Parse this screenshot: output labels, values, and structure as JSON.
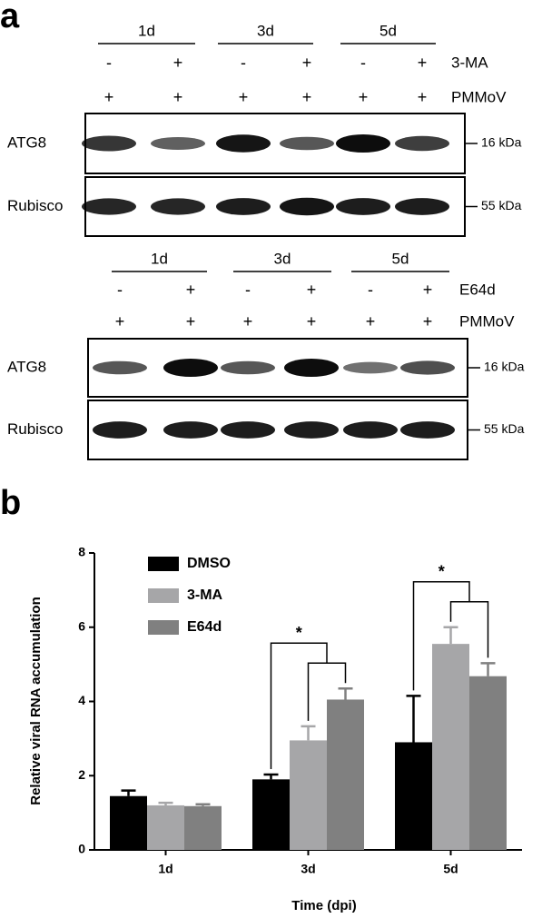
{
  "panel_a": {
    "label": "a",
    "blots": [
      {
        "groups": [
          "1d",
          "3d",
          "5d"
        ],
        "rows": [
          {
            "label": "3-MA",
            "signs": [
              "-",
              "+",
              "-",
              "+",
              "-",
              "+"
            ]
          },
          {
            "label": "PMMoV",
            "signs": [
              "+",
              "+",
              "+",
              "+",
              "+",
              "+"
            ]
          }
        ],
        "lanes": [
          {
            "label": "ATG8",
            "marker": "16 kDa"
          },
          {
            "label": "Rubisco",
            "marker": "55 kDa"
          }
        ]
      },
      {
        "groups": [
          "1d",
          "3d",
          "5d"
        ],
        "rows": [
          {
            "label": "E64d",
            "signs": [
              "-",
              "+",
              "-",
              "+",
              "-",
              "+"
            ]
          },
          {
            "label": "PMMoV",
            "signs": [
              "+",
              "+",
              "+",
              "+",
              "+",
              "+"
            ]
          }
        ],
        "lanes": [
          {
            "label": "ATG8",
            "marker": "16 kDa"
          },
          {
            "label": "Rubisco",
            "marker": "55 kDa"
          }
        ]
      }
    ]
  },
  "panel_b": {
    "label": "b"
  },
  "chart_data": {
    "type": "bar",
    "x_label": "Time (dpi)",
    "y_label": "Relative viral RNA accumulation",
    "categories": [
      "1d",
      "3d",
      "5d"
    ],
    "series": [
      {
        "name": "DMSO",
        "color": "#000000",
        "values": [
          1.45,
          1.9,
          2.9
        ],
        "errors": [
          0.15,
          0.13,
          1.25
        ]
      },
      {
        "name": "3-MA",
        "color": "#a6a6a8",
        "values": [
          1.2,
          2.95,
          5.55
        ],
        "errors": [
          0.07,
          0.38,
          0.45
        ]
      },
      {
        "name": "E64d",
        "color": "#808080",
        "values": [
          1.18,
          4.05,
          4.68
        ],
        "errors": [
          0.05,
          0.3,
          0.35
        ]
      }
    ],
    "ylim": [
      0,
      8
    ],
    "yticks": [
      0,
      2,
      4,
      6,
      8
    ],
    "annotations": [
      {
        "category": "3d",
        "text": "*"
      },
      {
        "category": "5d",
        "text": "*"
      }
    ]
  }
}
